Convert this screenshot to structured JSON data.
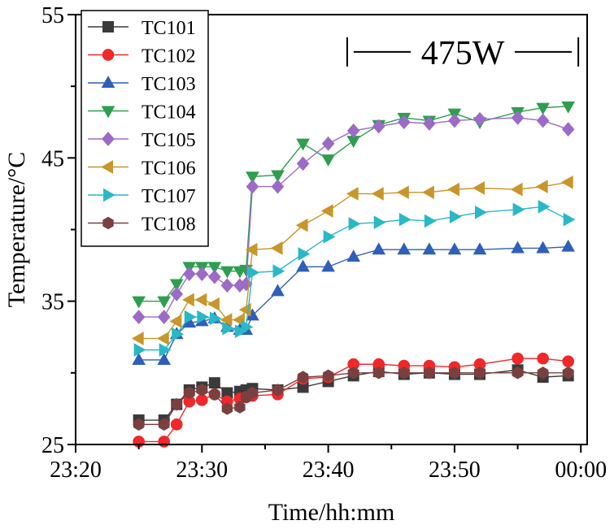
{
  "chart_data": {
    "type": "line",
    "xlabel": "Time/hh:mm",
    "ylabel": "Temperature/°C",
    "x_unit": "minutes after 23:20",
    "xlim": [
      0,
      40.5
    ],
    "ylim": [
      25,
      55
    ],
    "x_ticks": [
      0,
      10,
      20,
      30,
      40
    ],
    "x_tick_labels": [
      "23:20",
      "23:30",
      "23:40",
      "23:50",
      "00:00"
    ],
    "y_ticks": [
      25,
      35,
      45,
      55
    ],
    "y_tick_labels": [
      "25",
      "35",
      "45",
      "55"
    ],
    "legend_position": "top-left",
    "annotation": {
      "text": "475W",
      "x_start": 21.5,
      "x_end": 39.8,
      "y": 52.4
    },
    "x": [
      5,
      7,
      8,
      9,
      10,
      11,
      12,
      13,
      13.5,
      14,
      16,
      18,
      20,
      22,
      24,
      26,
      28,
      30,
      32,
      35,
      37,
      39
    ],
    "series": [
      {
        "name": "TC101",
        "marker": "square",
        "color": "#3a3a3a",
        "values": [
          26.7,
          26.7,
          27.8,
          28.8,
          29.0,
          29.3,
          28.6,
          28.7,
          28.8,
          28.9,
          28.8,
          29.0,
          29.4,
          29.8,
          30.1,
          29.9,
          30.0,
          29.9,
          29.9,
          30.2,
          29.7,
          29.8
        ]
      },
      {
        "name": "TC102",
        "marker": "circle",
        "color": "#f0282a",
        "values": [
          25.2,
          25.2,
          26.4,
          28.0,
          28.1,
          28.5,
          28.0,
          28.2,
          28.3,
          28.4,
          28.5,
          29.6,
          29.7,
          30.6,
          30.6,
          30.5,
          30.5,
          30.4,
          30.6,
          31.0,
          31.0,
          30.8
        ]
      },
      {
        "name": "TC103",
        "marker": "triangle-up",
        "color": "#2f5fb8",
        "values": [
          30.9,
          30.9,
          32.7,
          33.5,
          33.6,
          33.8,
          33.2,
          33.0,
          33.0,
          34.0,
          35.7,
          37.4,
          37.4,
          38.1,
          38.6,
          38.6,
          38.6,
          38.6,
          38.6,
          38.7,
          38.7,
          38.8
        ]
      },
      {
        "name": "TC104",
        "marker": "triangle-down",
        "color": "#2e9e4f",
        "values": [
          35.0,
          35.0,
          36.2,
          37.4,
          37.4,
          37.4,
          37.1,
          37.1,
          37.2,
          43.7,
          43.8,
          46.0,
          44.9,
          46.2,
          47.3,
          47.8,
          47.6,
          48.1,
          47.5,
          48.2,
          48.5,
          48.6
        ]
      },
      {
        "name": "TC105",
        "marker": "diamond",
        "color": "#9c6bc7",
        "values": [
          33.9,
          33.9,
          35.5,
          36.9,
          36.9,
          36.7,
          36.1,
          36.1,
          36.2,
          43.0,
          43.0,
          44.6,
          46.0,
          46.9,
          47.2,
          47.5,
          47.4,
          47.6,
          47.7,
          47.8,
          47.6,
          47.0
        ]
      },
      {
        "name": "TC106",
        "marker": "triangle-left",
        "color": "#c8962a",
        "values": [
          32.4,
          32.4,
          33.6,
          35.1,
          35.1,
          34.8,
          33.7,
          33.7,
          34.4,
          38.6,
          38.7,
          40.3,
          41.3,
          42.5,
          42.5,
          42.6,
          42.6,
          42.8,
          42.9,
          42.8,
          43.0,
          43.3
        ]
      },
      {
        "name": "TC107",
        "marker": "triangle-right",
        "color": "#2ab8c6",
        "values": [
          31.6,
          31.6,
          32.7,
          33.9,
          33.9,
          33.8,
          33.1,
          32.9,
          33.2,
          37.0,
          37.1,
          38.3,
          39.5,
          40.4,
          40.5,
          40.7,
          40.6,
          40.9,
          41.2,
          41.4,
          41.6,
          40.7
        ]
      },
      {
        "name": "TC108",
        "marker": "hexagon",
        "color": "#7a4040",
        "values": [
          26.4,
          26.4,
          27.8,
          28.6,
          28.8,
          28.5,
          27.5,
          27.6,
          28.3,
          28.6,
          28.8,
          29.7,
          29.8,
          30.0,
          30.0,
          30.0,
          30.0,
          30.0,
          30.0,
          30.0,
          30.0,
          30.0
        ]
      }
    ]
  }
}
